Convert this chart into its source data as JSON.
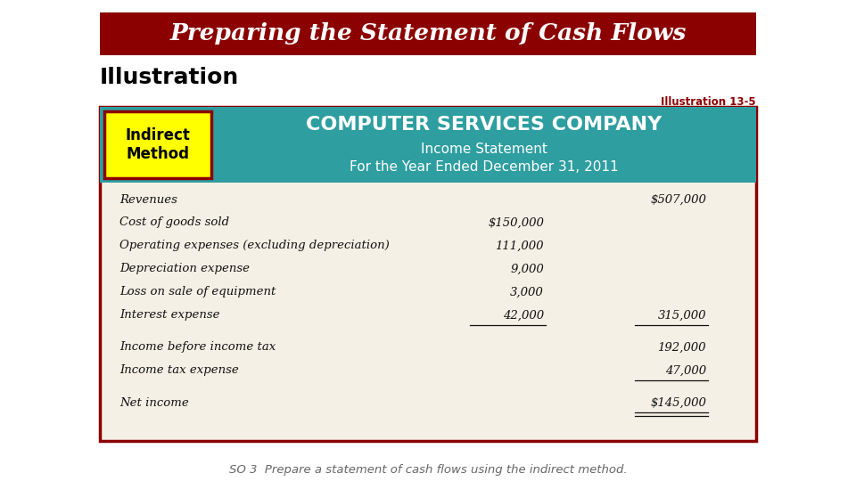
{
  "title_text": "Preparing the Statement of Cash Flows",
  "title_bg": "#8B0000",
  "title_fg": "#FFFFFF",
  "illustration_label": "Illustration",
  "illustration_ref": "Illustration 13-5",
  "so_text": "SO 3  Prepare a statement of cash flows using the indirect method.",
  "badge_text": "Indirect\nMethod",
  "badge_bg": "#FFFF00",
  "badge_border": "#8B0000",
  "header_bg": "#2E9EA0",
  "header_company": "COMPUTER SERVICES COMPANY",
  "header_line1": "Income Statement",
  "header_line2": "For the Year Ended December 31, 2011",
  "table_bg": "#F5F0E5",
  "table_border": "#8B0000",
  "rows": [
    {
      "label": "Revenues",
      "col1": "",
      "col2": "$507,000",
      "u1": false,
      "u2": false,
      "du": false,
      "gap_before": false
    },
    {
      "label": "Cost of goods sold",
      "col1": "$150,000",
      "col2": "",
      "u1": false,
      "u2": false,
      "du": false,
      "gap_before": false
    },
    {
      "label": "Operating expenses (excluding depreciation)",
      "col1": "111,000",
      "col2": "",
      "u1": false,
      "u2": false,
      "du": false,
      "gap_before": false
    },
    {
      "label": "Depreciation expense",
      "col1": "9,000",
      "col2": "",
      "u1": false,
      "u2": false,
      "du": false,
      "gap_before": false
    },
    {
      "label": "Loss on sale of equipment",
      "col1": "3,000",
      "col2": "",
      "u1": false,
      "u2": false,
      "du": false,
      "gap_before": false
    },
    {
      "label": "Interest expense",
      "col1": "42,000",
      "col2": "315,000",
      "u1": true,
      "u2": true,
      "du": false,
      "gap_before": false
    },
    {
      "label": "Income before income tax",
      "col1": "",
      "col2": "192,000",
      "u1": false,
      "u2": false,
      "du": false,
      "gap_before": true
    },
    {
      "label": "Income tax expense",
      "col1": "",
      "col2": "47,000",
      "u1": false,
      "u2": true,
      "du": false,
      "gap_before": false
    },
    {
      "label": "Net income",
      "col1": "",
      "col2": "$145,000",
      "u1": false,
      "u2": false,
      "du": true,
      "gap_before": true
    }
  ]
}
